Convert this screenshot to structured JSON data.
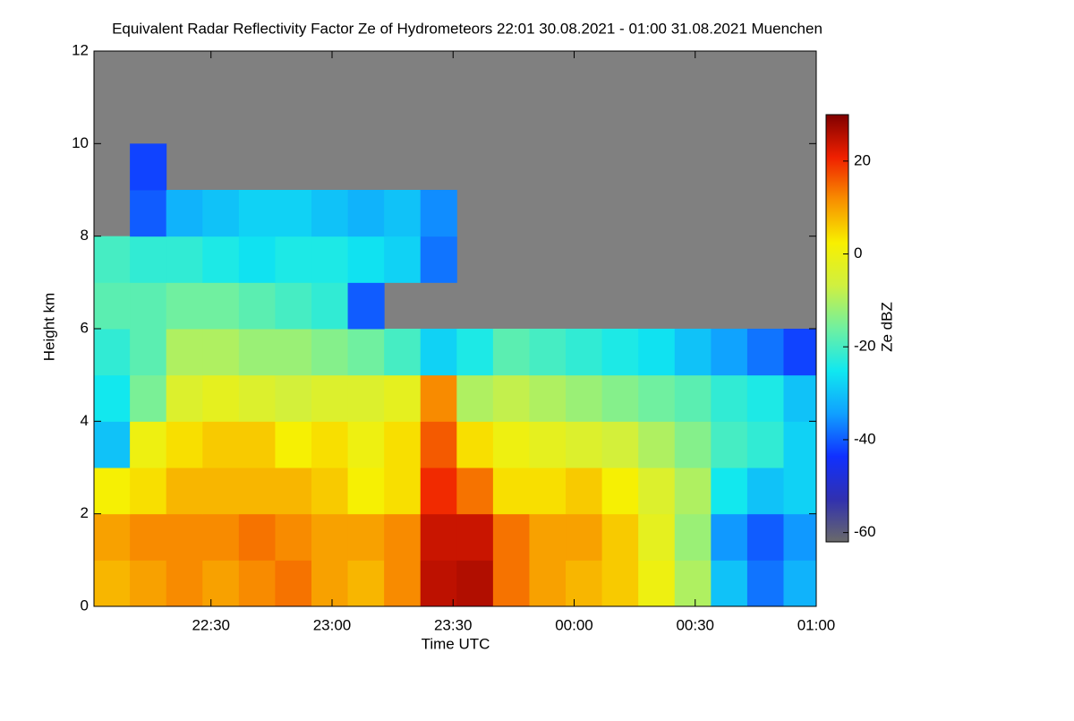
{
  "chart_data": {
    "type": "heatmap",
    "title": "Equivalent Radar Reflectivity Factor Ze of Hydrometeors   22:01 30.08.2021 - 01:00 31.08.2021 Muenchen",
    "x_label": "Time UTC",
    "y_label": "Height km",
    "colorbar_label": "Ze dBZ",
    "x": [
      22.09,
      22.24,
      22.39,
      22.54,
      22.69,
      22.84,
      22.99,
      23.14,
      23.29,
      23.44,
      23.59,
      23.74,
      23.89,
      24.04,
      24.19,
      24.34,
      24.49,
      24.64,
      24.79,
      24.94
    ],
    "y": [
      0.5,
      1.5,
      2.5,
      3.5,
      4.5,
      5.5,
      6.5,
      7.5,
      8.5,
      9.5,
      10.5,
      11.5
    ],
    "z": [
      [
        8,
        10,
        12,
        10,
        12,
        14,
        10,
        8,
        12,
        25,
        26,
        14,
        10,
        8,
        6,
        0,
        -10,
        -30,
        -38,
        -32
      ],
      [
        10,
        12,
        12,
        12,
        14,
        12,
        10,
        10,
        12,
        24,
        24,
        14,
        10,
        10,
        6,
        -2,
        -12,
        -35,
        -40,
        -35
      ],
      [
        2,
        4,
        8,
        8,
        8,
        8,
        6,
        2,
        4,
        20,
        14,
        4,
        4,
        6,
        2,
        -4,
        -10,
        -25,
        -30,
        -28
      ],
      [
        -30,
        0,
        4,
        6,
        6,
        2,
        4,
        0,
        4,
        16,
        4,
        0,
        -2,
        -4,
        -6,
        -10,
        -14,
        -20,
        -22,
        -28
      ],
      [
        -25,
        -15,
        -4,
        -2,
        -4,
        -6,
        -4,
        -4,
        -2,
        12,
        -10,
        -8,
        -10,
        -12,
        -14,
        -16,
        -18,
        -22,
        -24,
        -30
      ],
      [
        -22,
        -18,
        -10,
        -10,
        -12,
        -12,
        -14,
        -16,
        -20,
        -28,
        -24,
        -18,
        -20,
        -22,
        -24,
        -26,
        -30,
        -34,
        -38,
        -42
      ],
      [
        -18,
        -18,
        -16,
        -16,
        -18,
        -20,
        -22,
        -40,
        null,
        null,
        null,
        null,
        null,
        null,
        null,
        null,
        null,
        null,
        null,
        null
      ],
      [
        -20,
        -22,
        -22,
        -24,
        -26,
        -24,
        -24,
        -26,
        -28,
        -38,
        null,
        null,
        null,
        null,
        null,
        null,
        null,
        null,
        null,
        null
      ],
      [
        null,
        -40,
        -32,
        -30,
        -28,
        -28,
        -30,
        -32,
        -30,
        -36,
        null,
        null,
        null,
        null,
        null,
        null,
        null,
        null,
        null,
        null
      ],
      [
        null,
        -42,
        null,
        null,
        null,
        null,
        null,
        null,
        null,
        null,
        null,
        null,
        null,
        null,
        null,
        null,
        null,
        null,
        null,
        null
      ],
      [
        null,
        null,
        null,
        null,
        null,
        null,
        null,
        null,
        null,
        null,
        null,
        null,
        null,
        null,
        null,
        null,
        null,
        null,
        null,
        null
      ],
      [
        null,
        null,
        null,
        null,
        null,
        null,
        null,
        null,
        null,
        null,
        null,
        null,
        null,
        null,
        null,
        null,
        null,
        null,
        null,
        null
      ]
    ],
    "xlim": [
      22.0167,
      25
    ],
    "xticks": [
      {
        "value": 22.5,
        "label": "22:30"
      },
      {
        "value": 23,
        "label": "23:00"
      },
      {
        "value": 23.5,
        "label": "23:30"
      },
      {
        "value": 24,
        "label": "00:00"
      },
      {
        "value": 24.5,
        "label": "00:30"
      },
      {
        "value": 25,
        "label": "01:00"
      }
    ],
    "ylim": [
      0,
      12
    ],
    "yticks": [
      0,
      2,
      4,
      6,
      8,
      10,
      12
    ],
    "clim": [
      -62,
      30
    ],
    "cticks": [
      -60,
      -40,
      -20,
      0,
      20
    ],
    "background": "#808080",
    "colormap": [
      "#6a6a6a",
      "#3030b0",
      "#1030ff",
      "#10a0ff",
      "#10e8f0",
      "#70f0a0",
      "#d0f040",
      "#f8f000",
      "#f89000",
      "#f02000",
      "#800000"
    ]
  }
}
